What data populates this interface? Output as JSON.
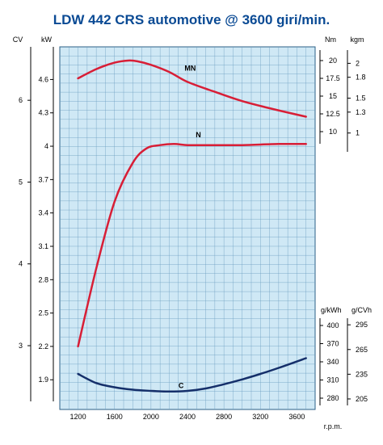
{
  "chart_data": {
    "type": "line",
    "title": "LDW 442 CRS automotive @ 3600 giri/min.",
    "xlabel": "r.p.m.",
    "x_ticks": [
      1200,
      1600,
      2000,
      2400,
      2800,
      3200,
      3600
    ],
    "xlim": [
      1000,
      3800
    ],
    "grid": true,
    "background_color": "#cfe8f5",
    "grid_color": "#6a9cbf",
    "axes": {
      "kW": {
        "label": "kW",
        "ticks": [
          "1.9",
          "2.2",
          "2.5",
          "2.8",
          "3.1",
          "3.4",
          "3.7",
          "4",
          "4.3",
          "4.6"
        ],
        "range": [
          1.8,
          4.85
        ]
      },
      "CV": {
        "label": "CV",
        "ticks": [
          "3",
          "4",
          "5",
          "6"
        ],
        "range": [
          2.4473,
          6.5941
        ]
      },
      "Nm": {
        "label": "Nm",
        "ticks": [
          "10",
          "12.5",
          "15",
          "17.5",
          "20"
        ],
        "range": [
          10,
          20
        ]
      },
      "kgm": {
        "label": "kgm",
        "ticks": [
          "1",
          "1.3",
          "1.5",
          "1.8",
          "2"
        ],
        "range": [
          1.0197,
          2.0394
        ]
      },
      "g/kWh": {
        "label": "g/kWh",
        "ticks": [
          "280",
          "310",
          "340",
          "370",
          "400"
        ],
        "range": [
          280,
          400
        ]
      },
      "g/CVh": {
        "label": "g/CVh",
        "ticks": [
          "205",
          "235",
          "265",
          "295"
        ],
        "range": [
          205.94,
          294.2
        ]
      }
    },
    "series": [
      {
        "name": "N",
        "axis": "kW",
        "color": "#d81e36",
        "x": [
          1200,
          1400,
          1600,
          1800,
          1950,
          2100,
          2250,
          2400,
          2600,
          3000,
          3400,
          3700
        ],
        "y": [
          2.2,
          2.9,
          3.5,
          3.85,
          3.98,
          4.01,
          4.02,
          4.01,
          4.01,
          4.01,
          4.02,
          4.02
        ]
      },
      {
        "name": "MN",
        "axis": "Nm",
        "color": "#d81e36",
        "x": [
          1200,
          1400,
          1600,
          1750,
          1850,
          2000,
          2200,
          2400,
          2700,
          3000,
          3300,
          3700
        ],
        "y": [
          17.5,
          18.8,
          19.7,
          20.0,
          19.9,
          19.4,
          18.4,
          17.0,
          15.6,
          14.3,
          13.3,
          12.1
        ]
      },
      {
        "name": "C",
        "axis": "g/kWh",
        "color": "#152f6a",
        "x": [
          1200,
          1400,
          1600,
          1800,
          2000,
          2200,
          2400,
          2600,
          2800,
          3000,
          3200,
          3400,
          3700
        ],
        "y": [
          320,
          305,
          298,
          294,
          292,
          291,
          292,
          296,
          303,
          311,
          320,
          330,
          346
        ]
      }
    ],
    "curve_labels": [
      {
        "text": "MN",
        "x": 2430,
        "axis": "Nm",
        "y": 18.6
      },
      {
        "text": "N",
        "x": 2520,
        "axis": "kW",
        "y": 4.08
      },
      {
        "text": "C",
        "x": 2330,
        "axis": "g/kWh",
        "y": 297
      }
    ]
  }
}
